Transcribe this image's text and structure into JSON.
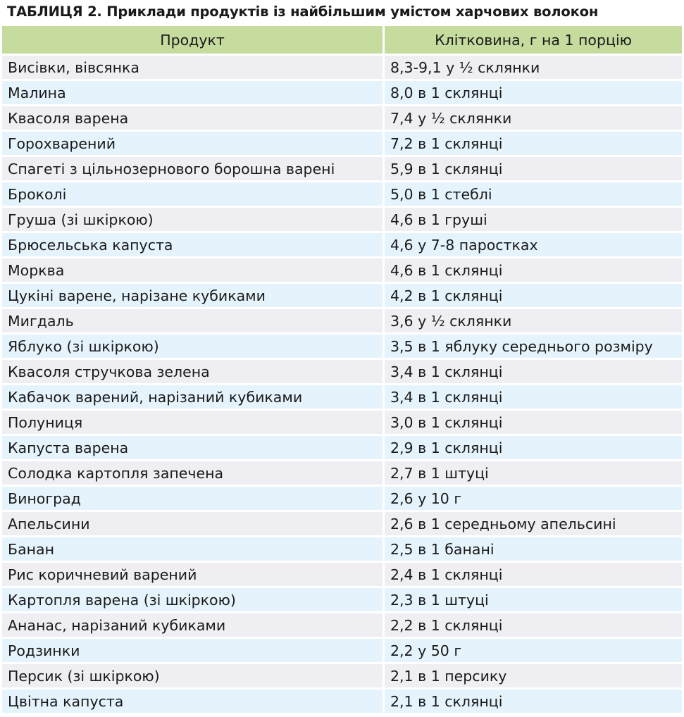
{
  "title": "ТАБЛИЦЯ 2. Приклади продуктів із найбільшим умістом харчових волокон",
  "columns": [
    "Продукт",
    "Клітковина, г на 1 порцію"
  ],
  "rows": [
    [
      "Висівки, вівсянка",
      "8,3-9,1 у ½ склянки"
    ],
    [
      "Малина",
      "8,0 в 1 склянці"
    ],
    [
      "Квасоля варена",
      "7,4 у ½ склянки"
    ],
    [
      "Горохварений",
      "7,2 в 1 склянці"
    ],
    [
      "Спагеті з цільнозернового борошна варені",
      "5,9 в 1 склянці"
    ],
    [
      "Броколі",
      "5,0 в 1 стеблі"
    ],
    [
      "Груша (зі шкіркою)",
      "4,6 в 1 груші"
    ],
    [
      "Брюсельська капуста",
      "4,6 у 7-8 паростках"
    ],
    [
      "Морква",
      "4,6 в 1 склянці"
    ],
    [
      "Цукіні варене, нарізане кубиками",
      "4,2 в 1 склянці"
    ],
    [
      "Мигдаль",
      "3,6 у ½ склянки"
    ],
    [
      "Яблуко (зі шкіркою)",
      "3,5 в 1 яблуку середнього розміру"
    ],
    [
      "Квасоля стручкова зелена",
      "3,4 в 1 склянці"
    ],
    [
      "Кабачок варений, нарізаний кубиками",
      "3,4 в 1 склянці"
    ],
    [
      "Полуниця",
      "3,0 в 1 склянці"
    ],
    [
      "Капуста варена",
      "2,9 в 1 склянці"
    ],
    [
      "Солодка картопля запечена",
      "2,7 в 1 штуці"
    ],
    [
      "Виноград",
      "2,6 у 10 г"
    ],
    [
      "Апельсини",
      "2,6 в 1 середньому апельсині"
    ],
    [
      "Банан",
      "2,5 в 1 банані"
    ],
    [
      "Рис коричневий варений",
      "2,4 в 1 склянці"
    ],
    [
      "Картопля варена (зі шкіркою)",
      "2,3 в 1 штуці"
    ],
    [
      "Ананас, нарізаний кубиками",
      "2,2 в 1 склянці"
    ],
    [
      "Родзинки",
      "2,2 у 50 г"
    ],
    [
      "Персик (зі шкіркою)",
      "2,1 в 1 персику"
    ],
    [
      "Цвітна капуста",
      "2,1 в 1 склянці"
    ]
  ],
  "colors": {
    "header": "#c6dc9e",
    "row_odd": "#efeef3",
    "row_even": "#e5f4fc"
  }
}
